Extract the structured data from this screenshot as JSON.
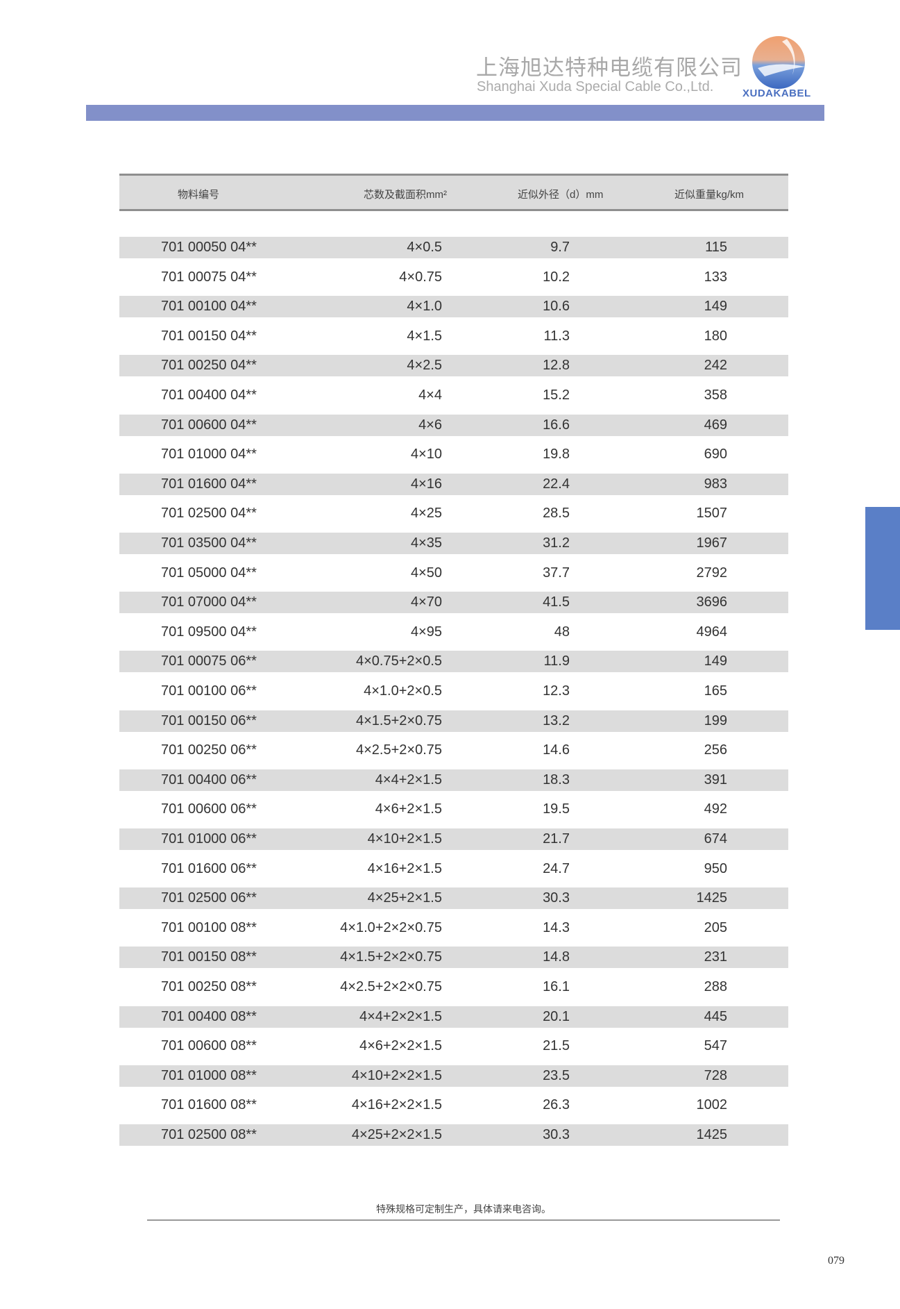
{
  "header": {
    "company_cn": "上海旭达特种电缆有限公司",
    "company_en": "Shanghai Xuda Special Cable Co.,Ltd.",
    "logo_text": "XUDAKABEL",
    "accent": "#8290c9",
    "side_tab": "#5a7fc7"
  },
  "table": {
    "columns": [
      "物料编号",
      "芯数及截面积mm²",
      "近似外径（d）mm",
      "近似重量kg/km"
    ],
    "rows": [
      [
        "701 00050 04**",
        "4×0.5",
        "9.7",
        "115"
      ],
      [
        "701 00075 04**",
        "4×0.75",
        "10.2",
        "133"
      ],
      [
        "701 00100 04**",
        "4×1.0",
        "10.6",
        "149"
      ],
      [
        "701 00150 04**",
        "4×1.5",
        "11.3",
        "180"
      ],
      [
        "701 00250 04**",
        "4×2.5",
        "12.8",
        "242"
      ],
      [
        "701 00400 04**",
        "4×4",
        "15.2",
        "358"
      ],
      [
        "701 00600 04**",
        "4×6",
        "16.6",
        "469"
      ],
      [
        "701 01000 04**",
        "4×10",
        "19.8",
        "690"
      ],
      [
        "701 01600 04**",
        "4×16",
        "22.4",
        "983"
      ],
      [
        "701 02500 04**",
        "4×25",
        "28.5",
        "1507"
      ],
      [
        "701 03500 04**",
        "4×35",
        "31.2",
        "1967"
      ],
      [
        "701 05000 04**",
        "4×50",
        "37.7",
        "2792"
      ],
      [
        "701 07000 04**",
        "4×70",
        "41.5",
        "3696"
      ],
      [
        "701 09500 04**",
        "4×95",
        "48",
        "4964"
      ],
      [
        "701 00075 06**",
        "4×0.75+2×0.5",
        "11.9",
        "149"
      ],
      [
        "701 00100 06**",
        "4×1.0+2×0.5",
        "12.3",
        "165"
      ],
      [
        "701 00150 06**",
        "4×1.5+2×0.75",
        "13.2",
        "199"
      ],
      [
        "701 00250 06**",
        "4×2.5+2×0.75",
        "14.6",
        "256"
      ],
      [
        "701 00400 06**",
        "4×4+2×1.5",
        "18.3",
        "391"
      ],
      [
        "701 00600 06**",
        "4×6+2×1.5",
        "19.5",
        "492"
      ],
      [
        "701 01000 06**",
        "4×10+2×1.5",
        "21.7",
        "674"
      ],
      [
        "701 01600 06**",
        "4×16+2×1.5",
        "24.7",
        "950"
      ],
      [
        "701 02500 06**",
        "4×25+2×1.5",
        "30.3",
        "1425"
      ],
      [
        "701 00100 08**",
        "4×1.0+2×2×0.75",
        "14.3",
        "205"
      ],
      [
        "701 00150 08**",
        "4×1.5+2×2×0.75",
        "14.8",
        "231"
      ],
      [
        "701 00250 08**",
        "4×2.5+2×2×0.75",
        "16.1",
        "288"
      ],
      [
        "701 00400 08**",
        "4×4+2×2×1.5",
        "20.1",
        "445"
      ],
      [
        "701 00600 08**",
        "4×6+2×2×1.5",
        "21.5",
        "547"
      ],
      [
        "701 01000 08**",
        "4×10+2×2×1.5",
        "23.5",
        "728"
      ],
      [
        "701 01600 08**",
        "4×16+2×2×1.5",
        "26.3",
        "1002"
      ],
      [
        "701 02500 08**",
        "4×25+2×2×1.5",
        "30.3",
        "1425"
      ]
    ]
  },
  "footer": {
    "note": "特殊规格可定制生产，具体请来电咨询。",
    "page_number": "079"
  }
}
